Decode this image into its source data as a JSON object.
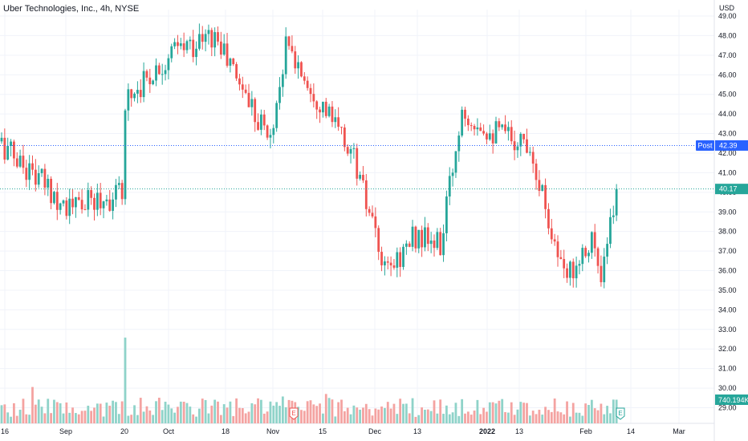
{
  "header": {
    "title": "Uber Technologies, Inc., 4h, NYSE",
    "currency": "USD"
  },
  "chart_data": {
    "type": "candlestick",
    "symbol": "Uber Technologies, Inc., 4h, NYSE",
    "currency": "USD",
    "ylim": [
      28.5,
      49.5
    ],
    "y_ticks": [
      "49.00",
      "48.00",
      "47.00",
      "46.00",
      "45.00",
      "44.00",
      "43.00",
      "42.00",
      "41.00",
      "40.00",
      "39.00",
      "38.00",
      "37.00",
      "36.00",
      "35.00",
      "34.00",
      "33.00",
      "32.00",
      "31.00",
      "30.00",
      "29.00"
    ],
    "x_ticks": [
      "16",
      "Sep",
      "20",
      "Oct",
      "18",
      "Nov",
      "15",
      "Dec",
      "13",
      "2022",
      "13",
      "Feb",
      "14",
      "Mar"
    ],
    "post_label": "Post",
    "post_value": "42.39",
    "last_value": "40.17",
    "volume_label": "740.194K",
    "earnings_markers": [
      "E",
      "E"
    ],
    "colors": {
      "up": "#26a69a",
      "down": "#ef5350",
      "vol_up": "#8fd3c9",
      "vol_down": "#f4a3a1",
      "post": "#2962ff",
      "last": "#26a69a"
    },
    "segments": [
      {
        "from": 0,
        "to": 23,
        "start": 42.6,
        "end": 39.2
      },
      {
        "from": 23,
        "to": 40,
        "start": 39.2,
        "end": 39.9
      },
      {
        "from": 40,
        "to": 41,
        "start": 39.9,
        "end": 44.8
      },
      {
        "from": 41,
        "to": 57,
        "start": 44.8,
        "end": 47.2
      },
      {
        "from": 57,
        "to": 70,
        "start": 47.2,
        "end": 48.0
      },
      {
        "from": 70,
        "to": 88,
        "start": 48.0,
        "end": 42.7
      },
      {
        "from": 88,
        "to": 93,
        "start": 42.7,
        "end": 47.5
      },
      {
        "from": 93,
        "to": 115,
        "start": 47.5,
        "end": 41.8
      },
      {
        "from": 115,
        "to": 125,
        "start": 41.8,
        "end": 35.8
      },
      {
        "from": 125,
        "to": 135,
        "start": 35.8,
        "end": 37.8
      },
      {
        "from": 135,
        "to": 143,
        "start": 37.8,
        "end": 37.2
      },
      {
        "from": 143,
        "to": 150,
        "start": 37.2,
        "end": 44.3
      },
      {
        "from": 150,
        "to": 160,
        "start": 44.3,
        "end": 43.1
      },
      {
        "from": 160,
        "to": 172,
        "start": 43.1,
        "end": 42.5
      },
      {
        "from": 172,
        "to": 183,
        "start": 42.5,
        "end": 35.5
      },
      {
        "from": 183,
        "to": 192,
        "start": 35.5,
        "end": 37.8
      },
      {
        "from": 192,
        "to": 195,
        "start": 37.8,
        "end": 35.2
      },
      {
        "from": 195,
        "to": 200,
        "start": 35.2,
        "end": 40.17
      }
    ],
    "volume_spikes": {
      "40": 3.6,
      "10": 1.6,
      "91": 1.4,
      "118": 1.5,
      "105": 1.3,
      "177": 1.3
    }
  }
}
